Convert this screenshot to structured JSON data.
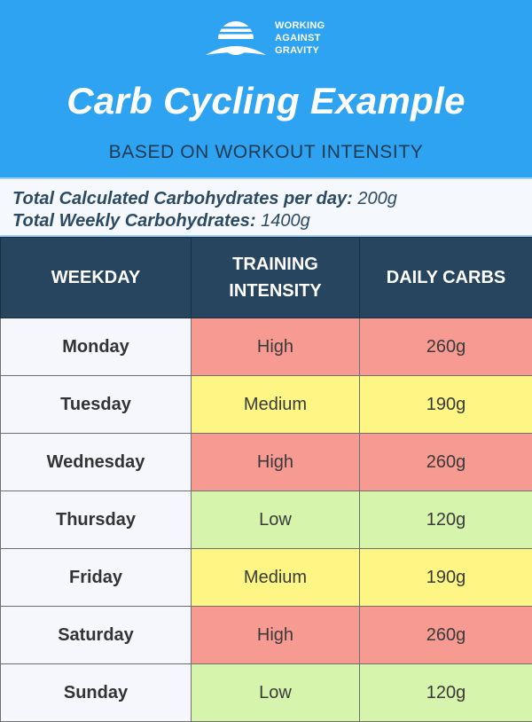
{
  "header": {
    "logo": {
      "icon": "working-against-gravity-logo",
      "lines": [
        "WORKING",
        "AGAINST",
        "GRAVITY"
      ]
    },
    "title": "Carb Cycling Example",
    "subtitle": "BASED ON WORKOUT INTENSITY",
    "colors": {
      "background": "#2ea3f2",
      "subtitle": "#1f3a52"
    }
  },
  "summary": {
    "daily_label": "Total Calculated Carbohydrates per day:",
    "daily_value": "200g",
    "weekly_label": "Total Weekly Carbohydrates:",
    "weekly_value": "1400g"
  },
  "table": {
    "columns": [
      "WEEKDAY",
      "TRAINING INTENSITY",
      "DAILY CARBS"
    ],
    "column_lines": {
      "training_1": "TRAINING",
      "training_2": "INTENSITY"
    },
    "colors": {
      "header_bg": "#27455f",
      "High": "#f79b92",
      "Medium": "#fdf685",
      "Low": "#d6f4ab",
      "day_bg": "#f6f7fc"
    },
    "rows": [
      {
        "day": "Monday",
        "intensity": "High",
        "carbs": "260g"
      },
      {
        "day": "Tuesday",
        "intensity": "Medium",
        "carbs": "190g"
      },
      {
        "day": "Wednesday",
        "intensity": "High",
        "carbs": "260g"
      },
      {
        "day": "Thursday",
        "intensity": "Low",
        "carbs": "120g"
      },
      {
        "day": "Friday",
        "intensity": "Medium",
        "carbs": "190g"
      },
      {
        "day": "Saturday",
        "intensity": "High",
        "carbs": "260g"
      },
      {
        "day": "Sunday",
        "intensity": "Low",
        "carbs": "120g"
      }
    ]
  }
}
